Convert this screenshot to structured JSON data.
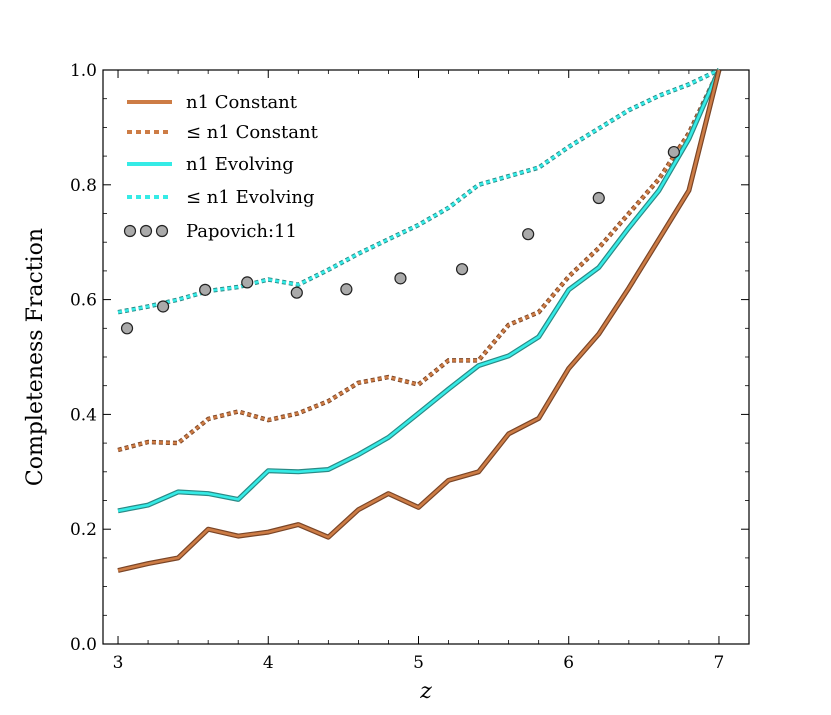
{
  "chart_data": {
    "type": "line",
    "title": "",
    "xlabel": "z",
    "ylabel": "Completeness Fraction",
    "xlim": [
      2.9,
      7.2
    ],
    "ylim": [
      0.0,
      1.0
    ],
    "xticks": [
      3,
      4,
      5,
      6,
      7
    ],
    "yticks": [
      0.0,
      0.2,
      0.4,
      0.6,
      0.8,
      1.0
    ],
    "xtick_labels": [
      "3",
      "4",
      "5",
      "6",
      "7"
    ],
    "ytick_labels": [
      "0.0",
      "0.2",
      "0.4",
      "0.6",
      "0.8",
      "1.0"
    ],
    "legend_position": "top-left",
    "colors": {
      "constant": "#cd7c45",
      "constant_dark": "#7a4527",
      "evolving": "#35ebe6",
      "evolving_dark": "#2a8a86",
      "marker_fill": "#aaaaaa",
      "marker_edge": "#222222"
    },
    "series": [
      {
        "name": "n1 Constant",
        "style": "solid",
        "color_key": "constant",
        "x": [
          3.0,
          3.2,
          3.4,
          3.6,
          3.8,
          4.0,
          4.2,
          4.4,
          4.6,
          4.8,
          5.0,
          5.2,
          5.4,
          5.6,
          5.8,
          6.0,
          6.2,
          6.4,
          6.6,
          6.8,
          7.0
        ],
        "y": [
          0.128,
          0.14,
          0.15,
          0.2,
          0.188,
          0.195,
          0.208,
          0.186,
          0.234,
          0.262,
          0.238,
          0.285,
          0.3,
          0.366,
          0.393,
          0.48,
          0.54,
          0.62,
          0.705,
          0.79,
          1.0
        ]
      },
      {
        "name": "≤ n1 Constant",
        "style": "dotted",
        "color_key": "constant",
        "x": [
          3.0,
          3.2,
          3.4,
          3.6,
          3.8,
          4.0,
          4.2,
          4.4,
          4.6,
          4.8,
          5.0,
          5.2,
          5.4,
          5.6,
          5.8,
          6.0,
          6.2,
          6.4,
          6.6,
          6.8,
          7.0
        ],
        "y": [
          0.338,
          0.352,
          0.35,
          0.392,
          0.405,
          0.39,
          0.402,
          0.423,
          0.455,
          0.465,
          0.452,
          0.494,
          0.494,
          0.556,
          0.578,
          0.64,
          0.69,
          0.75,
          0.81,
          0.89,
          1.0
        ]
      },
      {
        "name": "n1 Evolving",
        "style": "solid",
        "color_key": "evolving",
        "x": [
          3.0,
          3.2,
          3.4,
          3.6,
          3.8,
          4.0,
          4.2,
          4.4,
          4.6,
          4.8,
          5.0,
          5.2,
          5.4,
          5.6,
          5.8,
          6.0,
          6.2,
          6.4,
          6.6,
          6.8,
          7.0
        ],
        "y": [
          0.232,
          0.242,
          0.265,
          0.262,
          0.252,
          0.302,
          0.3,
          0.304,
          0.33,
          0.36,
          0.402,
          0.444,
          0.485,
          0.502,
          0.535,
          0.617,
          0.656,
          0.725,
          0.79,
          0.88,
          1.0
        ]
      },
      {
        "name": "≤ n1 Evolving",
        "style": "dotted",
        "color_key": "evolving",
        "x": [
          3.0,
          3.2,
          3.4,
          3.6,
          3.8,
          4.0,
          4.2,
          4.4,
          4.6,
          4.8,
          5.0,
          5.2,
          5.4,
          5.6,
          5.8,
          6.0,
          6.2,
          6.4,
          6.6,
          6.8,
          7.0
        ],
        "y": [
          0.578,
          0.588,
          0.6,
          0.615,
          0.622,
          0.635,
          0.626,
          0.652,
          0.68,
          0.705,
          0.73,
          0.76,
          0.8,
          0.815,
          0.83,
          0.866,
          0.898,
          0.93,
          0.955,
          0.975,
          1.0
        ]
      }
    ],
    "points": {
      "name": "Papovich:11",
      "x": [
        3.06,
        3.3,
        3.58,
        3.86,
        4.19,
        4.52,
        4.88,
        5.29,
        5.73,
        6.2,
        6.7
      ],
      "y": [
        0.55,
        0.588,
        0.617,
        0.63,
        0.612,
        0.618,
        0.637,
        0.653,
        0.714,
        0.777,
        0.857
      ]
    }
  }
}
